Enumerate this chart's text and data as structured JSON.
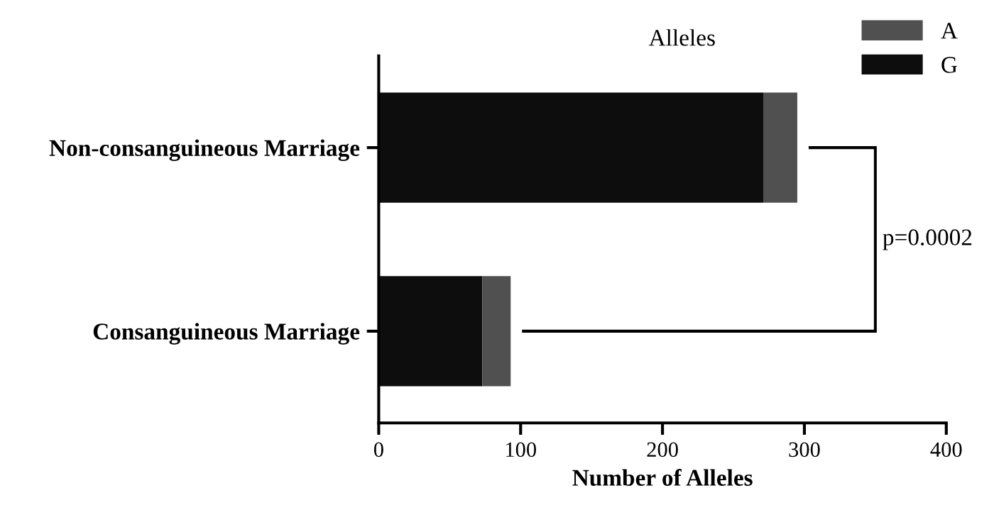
{
  "chart_data": {
    "type": "bar",
    "orientation": "horizontal",
    "stacked": true,
    "categories": [
      "Non-consanguineous Marriage",
      "Consanguineous Marriage"
    ],
    "series": [
      {
        "name": "G",
        "color": "#0d0d0d",
        "values": [
          271,
          73
        ]
      },
      {
        "name": "A",
        "color": "#505050",
        "values": [
          24,
          20
        ]
      }
    ],
    "xlabel": "Number of Alleles",
    "legend_title": "Alleles",
    "legend": "top right",
    "xlim": [
      0,
      400
    ],
    "xticks": [
      0,
      100,
      200,
      300,
      400
    ],
    "annotations": [
      "p=0.0002"
    ],
    "grid": false
  }
}
